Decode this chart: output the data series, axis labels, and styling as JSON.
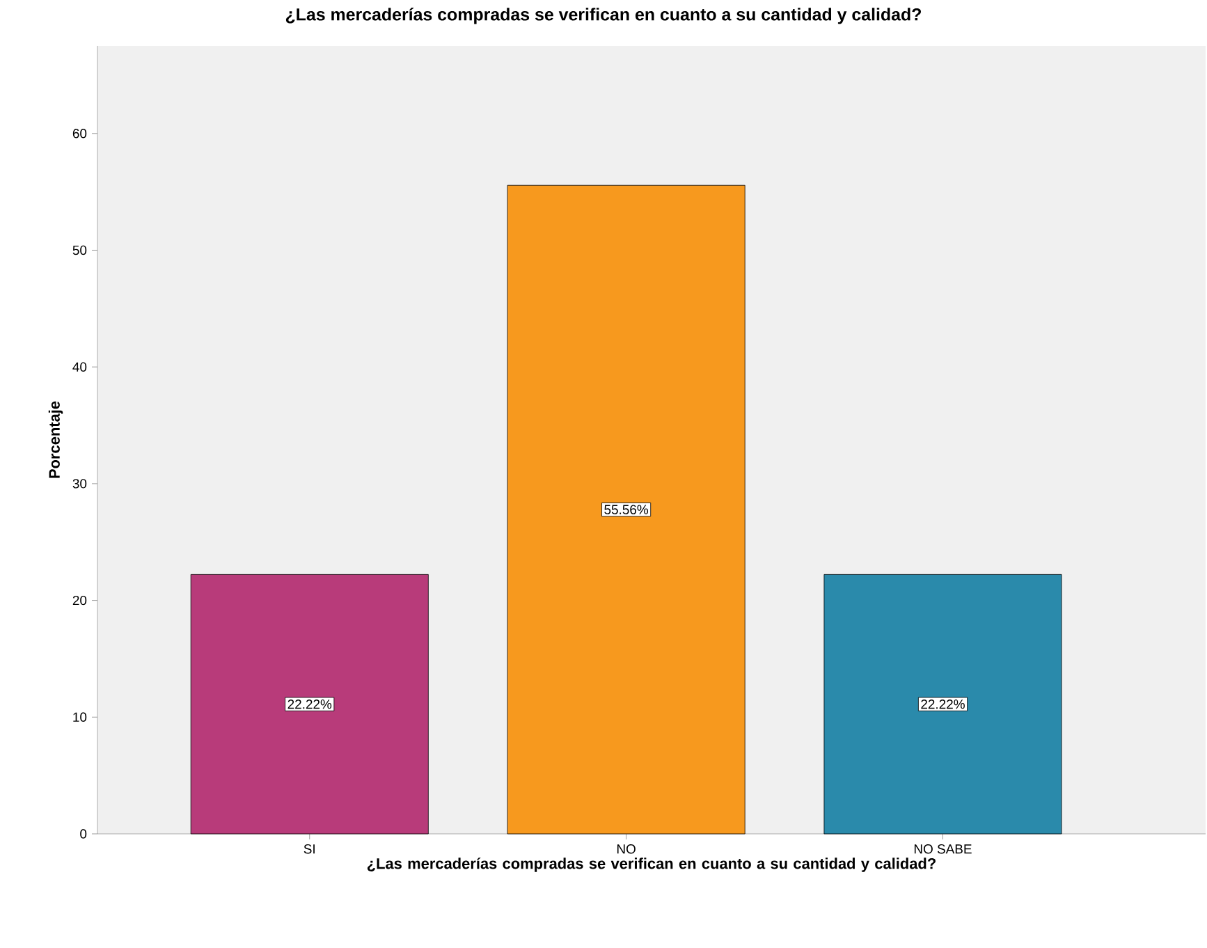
{
  "chart_data": {
    "type": "bar",
    "title": "¿Las mercaderías compradas se verifican en cuanto a su cantidad y calidad?",
    "xlabel": "¿Las mercaderías compradas se verifican en cuanto a su cantidad y calidad?",
    "ylabel": "Porcentaje",
    "categories": [
      "SI",
      "NO",
      "NO SABE"
    ],
    "values": [
      22.22,
      55.56,
      22.22
    ],
    "colors": [
      "#b83b7a",
      "#f7991e",
      "#2a8aab"
    ],
    "value_labels": [
      "22.22%",
      "55.56%",
      "22.22%"
    ],
    "ylim": [
      0,
      67.5
    ],
    "yticks": [
      0,
      10,
      20,
      30,
      40,
      50,
      60
    ]
  }
}
